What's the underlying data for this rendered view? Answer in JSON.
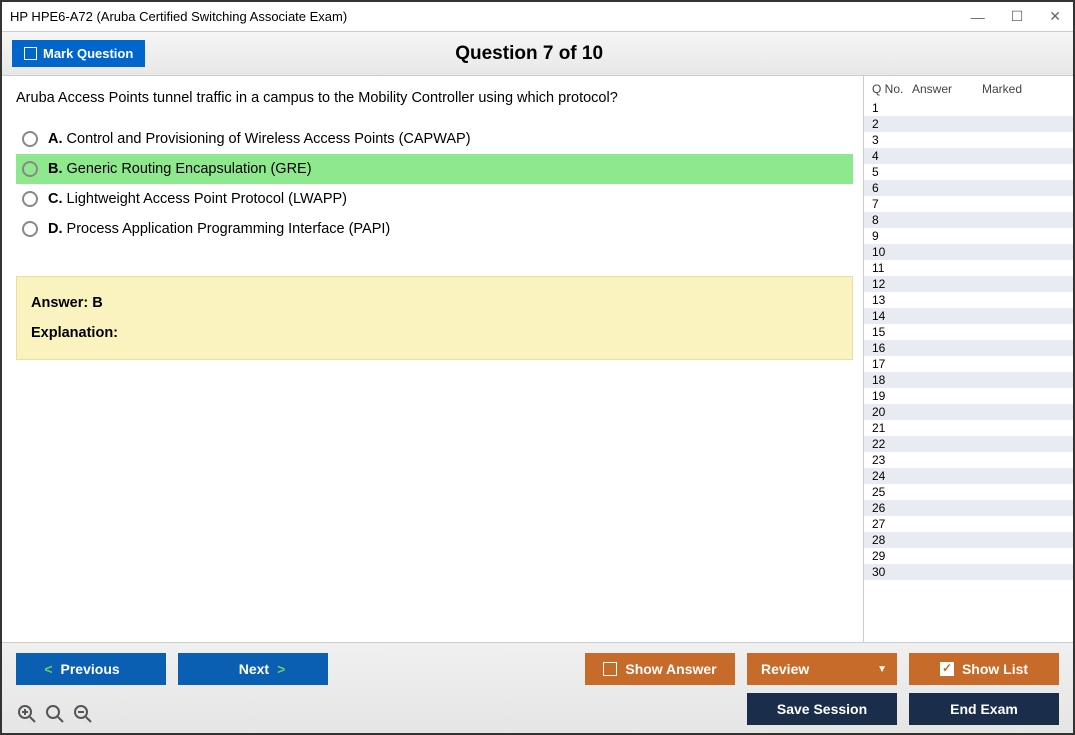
{
  "window": {
    "title": "HP HPE6-A72 (Aruba Certified Switching Associate Exam)"
  },
  "toolbar": {
    "mark_label": "Mark Question",
    "question_heading": "Question 7 of 10"
  },
  "question": {
    "text": "Aruba Access Points tunnel traffic in a campus to the Mobility Controller using which protocol?",
    "options": [
      {
        "letter": "A.",
        "text": "Control and Provisioning of Wireless Access Points (CAPWAP)",
        "highlight": false
      },
      {
        "letter": "B.",
        "text": "Generic Routing Encapsulation (GRE)",
        "highlight": true
      },
      {
        "letter": "C.",
        "text": "Lightweight Access Point Protocol (LWAPP)",
        "highlight": false
      },
      {
        "letter": "D.",
        "text": "Process Application Programming Interface (PAPI)",
        "highlight": false
      }
    ],
    "answer_label": "Answer: B",
    "explanation_label": "Explanation:"
  },
  "sidepanel": {
    "headers": {
      "qno": "Q No.",
      "answer": "Answer",
      "marked": "Marked"
    },
    "row_count": 30
  },
  "buttons": {
    "previous": "Previous",
    "next": "Next",
    "show_answer": "Show Answer",
    "review": "Review",
    "show_list": "Show List",
    "save_session": "Save Session",
    "end_exam": "End Exam"
  }
}
